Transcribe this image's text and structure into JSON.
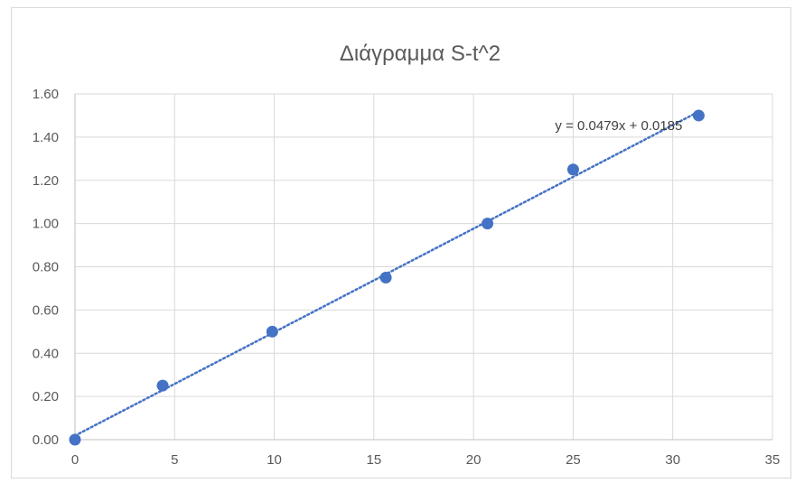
{
  "chart_data": {
    "type": "scatter",
    "title": "Διάγραμμα S-t^2",
    "xlabel": "",
    "ylabel": "",
    "xlim": [
      0,
      35
    ],
    "ylim": [
      0,
      1.6
    ],
    "x_ticks": [
      "0",
      "5",
      "10",
      "15",
      "20",
      "25",
      "30",
      "35"
    ],
    "y_ticks": [
      "0.00",
      "0.20",
      "0.40",
      "0.60",
      "0.80",
      "1.00",
      "1.20",
      "1.40",
      "1.60"
    ],
    "grid": true,
    "legend": "none",
    "series": [
      {
        "color": "#4472c4",
        "points": [
          {
            "x": 0,
            "y": 0.0
          },
          {
            "x": 4.4,
            "y": 0.25
          },
          {
            "x": 9.9,
            "y": 0.5
          },
          {
            "x": 15.6,
            "y": 0.75
          },
          {
            "x": 20.7,
            "y": 1.0
          },
          {
            "x": 25.0,
            "y": 1.25
          },
          {
            "x": 31.3,
            "y": 1.5
          }
        ]
      }
    ],
    "trendline": {
      "type": "linear",
      "slope": 0.0479,
      "intercept": 0.0185,
      "equation_label": "y = 0.0479x + 0.0185",
      "style": "dotted",
      "color": "#4472c4"
    }
  }
}
